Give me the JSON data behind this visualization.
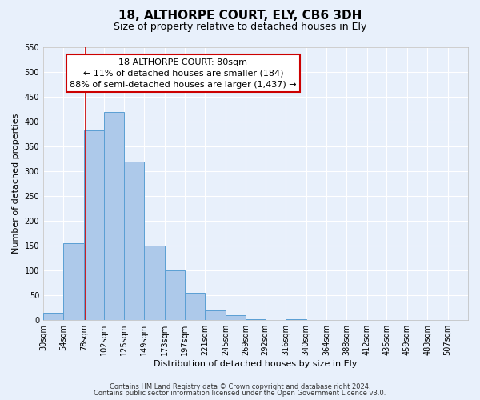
{
  "title": "18, ALTHORPE COURT, ELY, CB6 3DH",
  "subtitle": "Size of property relative to detached houses in Ely",
  "xlabel": "Distribution of detached houses by size in Ely",
  "ylabel": "Number of detached properties",
  "bin_edges": [
    30,
    54,
    78,
    102,
    125,
    149,
    173,
    197,
    221,
    245,
    269,
    292,
    316,
    340,
    364,
    388,
    412,
    435,
    459,
    483,
    507,
    531
  ],
  "bar_heights": [
    15,
    155,
    383,
    420,
    320,
    150,
    100,
    55,
    20,
    10,
    2,
    1,
    2,
    0,
    1,
    0,
    1,
    0,
    1,
    0,
    1
  ],
  "bar_color": "#adc9ea",
  "bar_edge_color": "#5a9fd4",
  "bar_edge_width": 0.7,
  "red_line_x": 80,
  "red_line_color": "#cc0000",
  "ylim": [
    0,
    550
  ],
  "yticks": [
    0,
    50,
    100,
    150,
    200,
    250,
    300,
    350,
    400,
    450,
    500,
    550
  ],
  "xtick_labels": [
    "30sqm",
    "54sqm",
    "78sqm",
    "102sqm",
    "125sqm",
    "149sqm",
    "173sqm",
    "197sqm",
    "221sqm",
    "245sqm",
    "269sqm",
    "292sqm",
    "316sqm",
    "340sqm",
    "364sqm",
    "388sqm",
    "412sqm",
    "435sqm",
    "459sqm",
    "483sqm",
    "507sqm"
  ],
  "annotation_title": "18 ALTHORPE COURT: 80sqm",
  "annotation_line1": "← 11% of detached houses are smaller (184)",
  "annotation_line2": "88% of semi-detached houses are larger (1,437) →",
  "annotation_box_color": "#ffffff",
  "annotation_box_edge_color": "#cc0000",
  "footer_line1": "Contains HM Land Registry data © Crown copyright and database right 2024.",
  "footer_line2": "Contains public sector information licensed under the Open Government Licence v3.0.",
  "bg_color": "#e8f0fb",
  "plot_bg_color": "#e8f0fb",
  "grid_color": "#ffffff",
  "title_fontsize": 11,
  "subtitle_fontsize": 9,
  "axis_label_fontsize": 8,
  "tick_fontsize": 7,
  "annotation_fontsize": 8,
  "footer_fontsize": 6
}
